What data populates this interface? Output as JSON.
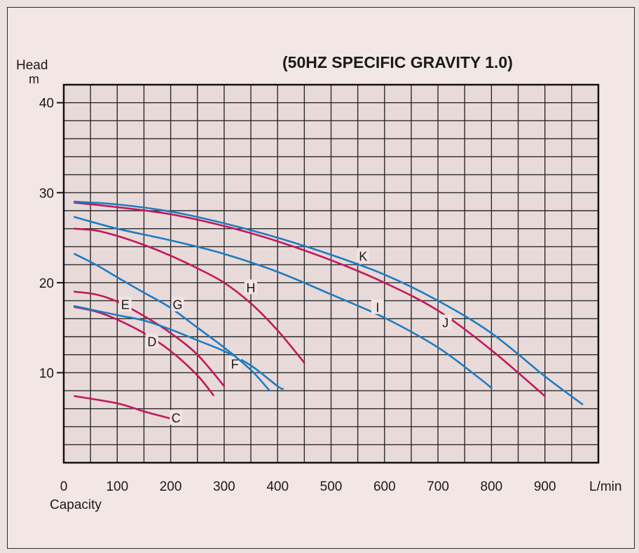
{
  "chart_data": {
    "type": "line",
    "title": "(50HZ SPECIFIC GRAVITY 1.0)",
    "ylabel": "Head",
    "yunit": "m",
    "xlabel": "Capacity",
    "xunit": "L/min",
    "xlim": [
      0,
      1000
    ],
    "ylim": [
      0,
      42
    ],
    "grid": true,
    "x_ticks": [
      "0",
      "100",
      "200",
      "300",
      "400",
      "500",
      "600",
      "700",
      "800",
      "900"
    ],
    "y_ticks": [
      "10",
      "20",
      "30",
      "40"
    ],
    "colors": {
      "blue": "#1f7cc0",
      "magenta": "#c2185b",
      "grid": "#222222",
      "axis": "#111111"
    },
    "series": [
      {
        "name": "C",
        "color": "magenta",
        "label_at": [
          210,
          5.0
        ],
        "points": [
          [
            20,
            7.4
          ],
          [
            100,
            6.6
          ],
          [
            150,
            5.7
          ],
          [
            200,
            4.9
          ],
          [
            220,
            4.5
          ]
        ]
      },
      {
        "name": "D",
        "color": "magenta",
        "label_at": [
          165,
          13.5
        ],
        "points": [
          [
            20,
            17.3
          ],
          [
            60,
            16.8
          ],
          [
            100,
            15.9
          ],
          [
            150,
            14.4
          ],
          [
            200,
            12.4
          ],
          [
            250,
            9.7
          ],
          [
            280,
            7.5
          ]
        ]
      },
      {
        "name": "E",
        "color": "magenta",
        "label_at": [
          115,
          17.6
        ],
        "points": [
          [
            20,
            19.0
          ],
          [
            60,
            18.7
          ],
          [
            100,
            17.9
          ],
          [
            150,
            16.3
          ],
          [
            200,
            14.4
          ],
          [
            250,
            12.0
          ],
          [
            300,
            8.5
          ]
        ]
      },
      {
        "name": "F",
        "color": "blue",
        "label_at": [
          320,
          11.0
        ],
        "points": [
          [
            20,
            17.4
          ],
          [
            100,
            16.4
          ],
          [
            150,
            15.8
          ],
          [
            200,
            14.8
          ],
          [
            250,
            13.6
          ],
          [
            300,
            12.4
          ],
          [
            350,
            10.8
          ],
          [
            400,
            8.5
          ],
          [
            410,
            8.2
          ]
        ]
      },
      {
        "name": "G",
        "color": "blue",
        "label_at": [
          213,
          17.6
        ],
        "points": [
          [
            20,
            23.2
          ],
          [
            60,
            22.0
          ],
          [
            100,
            20.6
          ],
          [
            150,
            18.9
          ],
          [
            200,
            17.2
          ],
          [
            250,
            15.0
          ],
          [
            300,
            12.8
          ],
          [
            350,
            10.3
          ],
          [
            385,
            8.0
          ]
        ]
      },
      {
        "name": "H",
        "color": "magenta",
        "label_at": [
          350,
          19.5
        ],
        "points": [
          [
            20,
            26.0
          ],
          [
            60,
            25.8
          ],
          [
            100,
            25.2
          ],
          [
            150,
            24.2
          ],
          [
            200,
            23.0
          ],
          [
            250,
            21.6
          ],
          [
            300,
            20.0
          ],
          [
            350,
            17.7
          ],
          [
            400,
            14.7
          ],
          [
            450,
            11.1
          ]
        ]
      },
      {
        "name": "I",
        "color": "blue",
        "label_at": [
          587,
          17.3
        ],
        "points": [
          [
            20,
            27.3
          ],
          [
            100,
            26.0
          ],
          [
            200,
            24.7
          ],
          [
            300,
            23.2
          ],
          [
            400,
            21.2
          ],
          [
            500,
            18.7
          ],
          [
            600,
            16.1
          ],
          [
            700,
            12.8
          ],
          [
            775,
            9.5
          ],
          [
            800,
            8.3
          ]
        ]
      },
      {
        "name": "J",
        "color": "magenta",
        "label_at": [
          714,
          15.6
        ],
        "points": [
          [
            20,
            28.9
          ],
          [
            100,
            28.4
          ],
          [
            200,
            27.6
          ],
          [
            300,
            26.3
          ],
          [
            400,
            24.6
          ],
          [
            500,
            22.5
          ],
          [
            600,
            20.0
          ],
          [
            700,
            16.9
          ],
          [
            800,
            12.5
          ],
          [
            900,
            7.4
          ]
        ]
      },
      {
        "name": "K",
        "color": "blue",
        "label_at": [
          560,
          23.0
        ],
        "points": [
          [
            20,
            29.0
          ],
          [
            100,
            28.7
          ],
          [
            200,
            27.9
          ],
          [
            300,
            26.6
          ],
          [
            400,
            25.0
          ],
          [
            500,
            23.1
          ],
          [
            600,
            20.9
          ],
          [
            700,
            18.0
          ],
          [
            800,
            14.4
          ],
          [
            900,
            9.6
          ],
          [
            970,
            6.5
          ]
        ]
      }
    ]
  }
}
